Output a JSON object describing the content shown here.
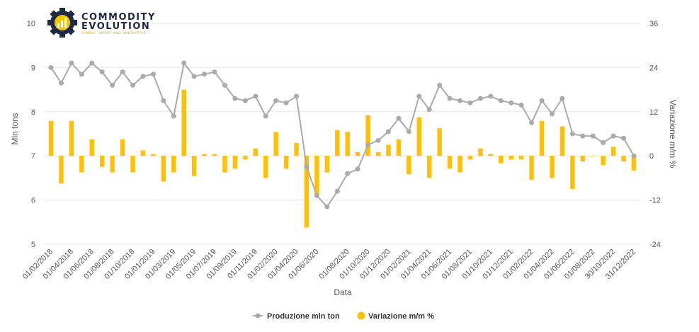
{
  "logo": {
    "line1": "COMMODITY",
    "line2": "EVOLUTION",
    "tagline": "SIMPLY, SMART AND INNOVATIVE"
  },
  "colors": {
    "line": "#aaaaaa",
    "bar": "#ffc107",
    "grid": "#e6e6e6",
    "logo_dark": "#1f2a44",
    "logo_yellow": "#f5c400"
  },
  "chart_data": {
    "type": "line",
    "xlabel": "Data",
    "ylabel_left": "Mln tons",
    "ylabel_right": "Variazione m/m %",
    "ylim_left": [
      5,
      10
    ],
    "ylim_right": [
      -24,
      36
    ],
    "yticks_left": [
      5,
      6,
      7,
      8,
      9,
      10
    ],
    "yticks_right": [
      -24,
      -12,
      0,
      12,
      24,
      36
    ],
    "grid": true,
    "legend_position": "bottom-center",
    "x_tick_labels": [
      "01/02/2018",
      "01/04/2018",
      "01/06/2018",
      "01/08/2018",
      "01/10/2018",
      "01/01/2019",
      "01/03/2019",
      "01/05/2019",
      "01/07/2019",
      "01/09/2019",
      "01/11/2019",
      "01/02/2020",
      "01/04/2020",
      "01/06/2020",
      "01/08/2020",
      "01/10/2020",
      "01/12/2020",
      "01/02/2021",
      "01/04/2021",
      "01/06/2021",
      "01/08/2021",
      "01/10/2021",
      "01/12/2021",
      "01/02/2022",
      "01/04/2022",
      "01/06/2022",
      "01/08/2022",
      "30/10/2022",
      "31/12/2022"
    ],
    "series": [
      {
        "name": "Produzione mln ton",
        "type": "line",
        "axis": "left",
        "values": [
          9.0,
          8.65,
          9.1,
          8.85,
          9.1,
          8.9,
          8.6,
          8.9,
          8.6,
          8.8,
          8.85,
          8.25,
          7.9,
          9.1,
          8.8,
          8.85,
          8.9,
          8.6,
          8.3,
          8.25,
          8.35,
          7.9,
          8.25,
          8.2,
          8.35,
          6.75,
          6.1,
          5.85,
          6.2,
          6.6,
          6.7,
          7.25,
          7.35,
          7.55,
          7.85,
          7.55,
          8.35,
          8.05,
          8.6,
          8.3,
          8.25,
          8.2,
          8.3,
          8.35,
          8.25,
          8.2,
          8.15,
          7.75,
          8.25,
          7.95,
          8.3,
          7.5,
          7.45,
          7.45,
          7.3,
          7.45,
          7.4,
          7.0
        ]
      },
      {
        "name": "Variazione m/m %",
        "type": "bar",
        "axis": "right",
        "values": [
          9.5,
          -7.5,
          9.5,
          -4.5,
          4.5,
          -3,
          -4.5,
          4.5,
          -4.5,
          1.5,
          0.5,
          -7,
          -4.5,
          18,
          -5.5,
          0.5,
          0.5,
          -4.5,
          -3.5,
          -1,
          2,
          -6,
          6.5,
          -3.5,
          3.5,
          -19.5,
          -10.5,
          -4.5,
          7,
          6.5,
          1,
          11,
          1,
          3,
          4.5,
          -5,
          10.5,
          -6,
          7.5,
          -3.5,
          -4.5,
          -1,
          2,
          0.5,
          -2,
          -1,
          -1,
          -6.5,
          9.5,
          -6,
          8,
          -9,
          -1.5,
          0,
          -2.5,
          2.5,
          -1.5,
          -4
        ]
      }
    ]
  }
}
